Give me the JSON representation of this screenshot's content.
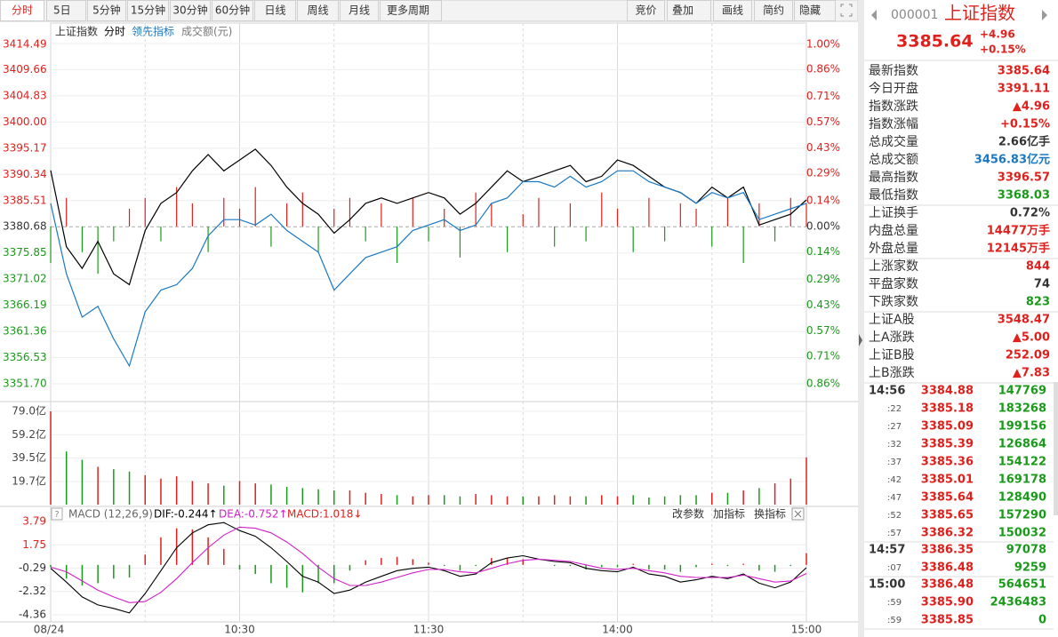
{
  "toolbar": {
    "left": [
      "分时",
      "5日",
      "5分钟",
      "15分钟",
      "30分钟",
      "60分钟",
      "日线",
      "周线",
      "月线",
      "更多周期"
    ],
    "right": [
      "竞价",
      "叠加",
      "画线",
      "简约",
      "隐藏"
    ]
  },
  "chart": {
    "legend": [
      {
        "text": "上证指数",
        "color": "#333333"
      },
      {
        "text": "分时",
        "color": "#000000"
      },
      {
        "text": "领先指标",
        "color": "#1a78c2"
      },
      {
        "text": "成交额(元)",
        "color": "#777777"
      }
    ],
    "x": [
      0,
      5,
      10,
      15,
      20,
      25,
      30,
      35,
      40,
      45,
      50,
      55,
      60,
      65,
      70,
      75,
      80,
      85,
      90,
      95,
      100,
      105,
      110,
      115,
      120,
      125,
      130,
      135,
      140,
      145,
      150,
      155,
      160,
      165,
      170,
      175,
      180,
      185,
      190,
      195,
      200,
      205,
      210,
      215,
      220,
      225,
      230,
      235,
      240
    ],
    "xlim": [
      0,
      240
    ],
    "xticks": [
      {
        "value": 0,
        "label": "08/24"
      },
      {
        "value": 60,
        "label": "10:30"
      },
      {
        "value": 120,
        "label": "11:30"
      },
      {
        "value": 180,
        "label": "14:00"
      },
      {
        "value": 240,
        "label": "15:00"
      }
    ],
    "xgrid": [
      30,
      60,
      90,
      120,
      150,
      180,
      210
    ],
    "price": {
      "ylim": [
        3351.7,
        3414.49
      ],
      "yticks": [
        3414.49,
        3409.66,
        3404.83,
        {
          "value": 3400,
          "label": "3400.00"
        },
        3395.17,
        3390.34,
        3385.51,
        3380.68,
        3375.85,
        3371.02,
        3366.19,
        3361.36,
        3356.53,
        {
          "value": 3351.7,
          "label": "3351.70"
        }
      ],
      "y2lim": [
        -0.86,
        1.0
      ],
      "y2ticks": [
        {
          "value": 1.0,
          "label": "1.00%"
        },
        {
          "value": 0.86,
          "label": "0.86%"
        },
        {
          "value": 0.71,
          "label": "0.71%"
        },
        {
          "value": 0.57,
          "label": "0.57%"
        },
        {
          "value": 0.43,
          "label": "0.43%"
        },
        {
          "value": 0.29,
          "label": "0.29%"
        },
        {
          "value": 0.14,
          "label": "0.14%"
        },
        {
          "value": 0,
          "label": "0.00%"
        },
        {
          "value": -0.14,
          "label": "0.14%"
        },
        {
          "value": -0.29,
          "label": "0.29%"
        },
        {
          "value": -0.43,
          "label": "0.43%"
        },
        {
          "value": -0.57,
          "label": "0.57%"
        },
        {
          "value": -0.71,
          "label": "0.71%"
        },
        {
          "value": -0.86,
          "label": "0.86%"
        }
      ],
      "up_color": "#e0201c",
      "down_color": "#1a9a1a",
      "flat_color": "#333333",
      "series": [
        {
          "color": "#000000",
          "values": [
            3391.1,
            3377,
            3373,
            3378,
            3372,
            3370,
            3380,
            3385,
            3387,
            3391,
            3394,
            3391,
            3393,
            3395,
            3392,
            3388,
            3385,
            3383,
            3379.5,
            3382,
            3385,
            3386,
            3385,
            3386,
            3387,
            3386,
            3383,
            3385,
            3388,
            3391,
            3389,
            3390,
            3391,
            3392,
            3389,
            3390,
            3393,
            3392,
            3390,
            3388,
            3387,
            3385,
            3388,
            3386,
            3388,
            3381,
            3382,
            3383,
            3385.64
          ]
        },
        {
          "color": "#1a78c2",
          "values": [
            3385,
            3372,
            3364,
            3366,
            3360,
            3355,
            3365,
            3369,
            3370,
            3373,
            3379,
            3382,
            3382,
            3381,
            3383,
            3380,
            3378,
            3376,
            3369,
            3372,
            3375,
            3376,
            3377,
            3380,
            3381,
            3382,
            3380,
            3381,
            3385,
            3386,
            3389,
            3389,
            3388,
            3390,
            3388,
            3389,
            3391,
            3391,
            3389,
            3388,
            3387,
            3385,
            3387,
            3386,
            3387,
            3382,
            3383,
            3384,
            3385
          ]
        }
      ],
      "bars": [
        3374,
        3386,
        3376,
        3372,
        3378,
        3384,
        3386,
        3378,
        3388,
        3385,
        3376,
        3386,
        3384,
        3388,
        3377,
        3385,
        3387,
        3376,
        3384,
        3386,
        3378,
        3385,
        3374,
        3386,
        3378,
        3384,
        3375,
        3387,
        3385,
        3376,
        3383,
        3386,
        3377,
        3385,
        3378,
        3387,
        3384,
        3376,
        3386,
        3378,
        3385,
        3384,
        3377,
        3386,
        3374,
        3385,
        3378,
        3386,
        3385
      ]
    },
    "volume": {
      "ylim": [
        0,
        79
      ],
      "yticks": [
        {
          "value": 79,
          "label": "79.0亿"
        },
        {
          "value": 59.2,
          "label": "59.2亿"
        },
        {
          "value": 39.5,
          "label": "39.5亿"
        },
        {
          "value": 19.7,
          "label": "19.7亿"
        }
      ],
      "values": [
        79,
        45,
        38,
        32,
        30,
        28,
        25,
        22,
        24,
        20,
        18,
        16,
        20,
        18,
        17,
        15,
        14,
        13,
        12,
        12,
        10,
        9,
        8,
        7,
        8,
        8,
        7,
        9,
        8,
        7,
        7,
        7,
        8,
        7,
        7,
        8,
        7,
        8,
        6,
        7,
        8,
        8,
        10,
        10,
        12,
        14,
        18,
        22,
        40
      ]
    },
    "macd": {
      "title": "MACD (12,26,9)",
      "labels": [
        {
          "text": "DIF:-0.244↑",
          "color": "#000000"
        },
        {
          "text": "DEA:-0.752↑",
          "color": "#d020c8"
        },
        {
          "text": "MACD:1.018↓",
          "color": "#e0201c"
        }
      ],
      "tools": [
        "改参数",
        "加指标",
        "换指标"
      ],
      "ylim": [
        -4.36,
        3.79
      ],
      "yticks": [
        3.79,
        1.75,
        -0.29,
        -2.32,
        -4.36
      ],
      "series": [
        {
          "color": "#000000",
          "values": [
            -0.3,
            -1.5,
            -2.8,
            -3.5,
            -3.8,
            -4.2,
            -2.5,
            -0.5,
            1.5,
            2.8,
            3.5,
            3.7,
            3.0,
            2.5,
            1.5,
            0.3,
            -1.0,
            -1.5,
            -2.5,
            -2.2,
            -1.5,
            -1.0,
            -0.5,
            -0.3,
            -0.2,
            -0.5,
            -1.0,
            -0.8,
            0.2,
            0.6,
            0.8,
            0.5,
            0.3,
            0.2,
            -0.3,
            -0.5,
            -0.6,
            -0.2,
            -0.8,
            -1.0,
            -1.5,
            -1.3,
            -1.0,
            -1.2,
            -0.8,
            -1.6,
            -2.0,
            -1.5,
            -0.244
          ]
        },
        {
          "color": "#d020c8",
          "values": [
            -0.2,
            -0.6,
            -1.4,
            -2.2,
            -2.8,
            -3.3,
            -3.2,
            -2.4,
            -1.2,
            0.2,
            1.5,
            2.6,
            3.3,
            3.2,
            2.8,
            2.0,
            1.0,
            -0.2,
            -1.2,
            -1.8,
            -1.8,
            -1.5,
            -1.1,
            -0.7,
            -0.4,
            -0.4,
            -0.6,
            -0.7,
            -0.3,
            0.1,
            0.4,
            0.5,
            0.4,
            0.3,
            0.0,
            -0.3,
            -0.4,
            -0.3,
            -0.5,
            -0.7,
            -1.0,
            -1.1,
            -1.1,
            -1.1,
            -0.9,
            -1.2,
            -1.5,
            -1.4,
            -0.752
          ]
        }
      ],
      "hist": [
        -0.2,
        -1.2,
        -1.8,
        -1.6,
        -1.2,
        -1.1,
        0.9,
        2.4,
        3.2,
        3.1,
        2.4,
        1.4,
        -0.4,
        -0.8,
        -1.6,
        -2.0,
        -2.4,
        -1.6,
        -1.6,
        -0.5,
        0.4,
        0.6,
        0.7,
        0.5,
        0.2,
        -0.1,
        -0.5,
        -0.1,
        0.6,
        0.6,
        0.5,
        0.0,
        -0.1,
        -0.1,
        -0.4,
        -0.2,
        -0.2,
        0.1,
        -0.4,
        -0.4,
        -0.6,
        -0.2,
        0.1,
        -0.1,
        0.1,
        -0.5,
        -0.6,
        -0.1,
        1.018
      ]
    }
  },
  "quote": {
    "code": "000001",
    "name": "上证指数",
    "price": "3385.64",
    "change": "+4.96",
    "pct": "+0.15%",
    "groups": [
      [
        {
          "label": "最新指数",
          "value": "3385.64",
          "color": "#e0201c"
        },
        {
          "label": "今日开盘",
          "value": "3391.11",
          "color": "#e0201c"
        },
        {
          "label": "指数涨跌",
          "value": "▲4.96",
          "color": "#e0201c"
        },
        {
          "label": "指数涨幅",
          "value": "+0.15%",
          "color": "#e0201c"
        },
        {
          "label": "总成交量",
          "value": "2.66亿手",
          "color": "#333333"
        },
        {
          "label": "总成交额",
          "value": "3456.83亿元",
          "color": "#1a78c2"
        },
        {
          "label": "最高指数",
          "value": "3396.57",
          "color": "#e0201c"
        },
        {
          "label": "最低指数",
          "value": "3368.03",
          "color": "#1a9a1a"
        }
      ],
      [
        {
          "label": "上证换手",
          "value": "0.72%",
          "color": "#333333"
        },
        {
          "label": "内盘总量",
          "value": "14477万手",
          "color": "#e0201c"
        },
        {
          "label": "外盘总量",
          "value": "12145万手",
          "color": "#e0201c"
        }
      ],
      [
        {
          "label": "上涨家数",
          "value": "844",
          "color": "#e0201c"
        },
        {
          "label": "平盘家数",
          "value": "74",
          "color": "#333333"
        },
        {
          "label": "下跌家数",
          "value": "823",
          "color": "#1a9a1a"
        }
      ],
      [
        {
          "label": "上证A股",
          "value": "3548.47",
          "color": "#e0201c"
        },
        {
          "label": "上A涨跌",
          "value": "▲5.00",
          "color": "#e0201c"
        },
        {
          "label": "上证B股",
          "value": "252.09",
          "color": "#e0201c"
        },
        {
          "label": "上B涨跌",
          "value": "▲7.83",
          "color": "#e0201c"
        }
      ]
    ],
    "tick_groups": [
      [
        {
          "time": "14:56",
          "price": "3384.88",
          "volume": "147769"
        },
        {
          "time": ":22",
          "price": "3385.18",
          "volume": "183268"
        },
        {
          "time": ":27",
          "price": "3385.09",
          "volume": "199156"
        },
        {
          "time": ":32",
          "price": "3385.39",
          "volume": "126864"
        },
        {
          "time": ":37",
          "price": "3385.36",
          "volume": "154122"
        },
        {
          "time": ":42",
          "price": "3385.01",
          "volume": "169178"
        },
        {
          "time": ":47",
          "price": "3385.64",
          "volume": "128490"
        },
        {
          "time": ":52",
          "price": "3385.65",
          "volume": "157290"
        },
        {
          "time": ":57",
          "price": "3386.32",
          "volume": "150032"
        }
      ],
      [
        {
          "time": "14:57",
          "price": "3386.35",
          "volume": "97078"
        },
        {
          "time": ":07",
          "price": "3386.48",
          "volume": "9259"
        }
      ],
      [
        {
          "time": "15:00",
          "price": "3386.48",
          "volume": "564651"
        },
        {
          "time": ":59",
          "price": "3385.90",
          "volume": "2436483"
        },
        {
          "time": ":59",
          "price": "3385.85",
          "volume": "0"
        }
      ]
    ]
  }
}
